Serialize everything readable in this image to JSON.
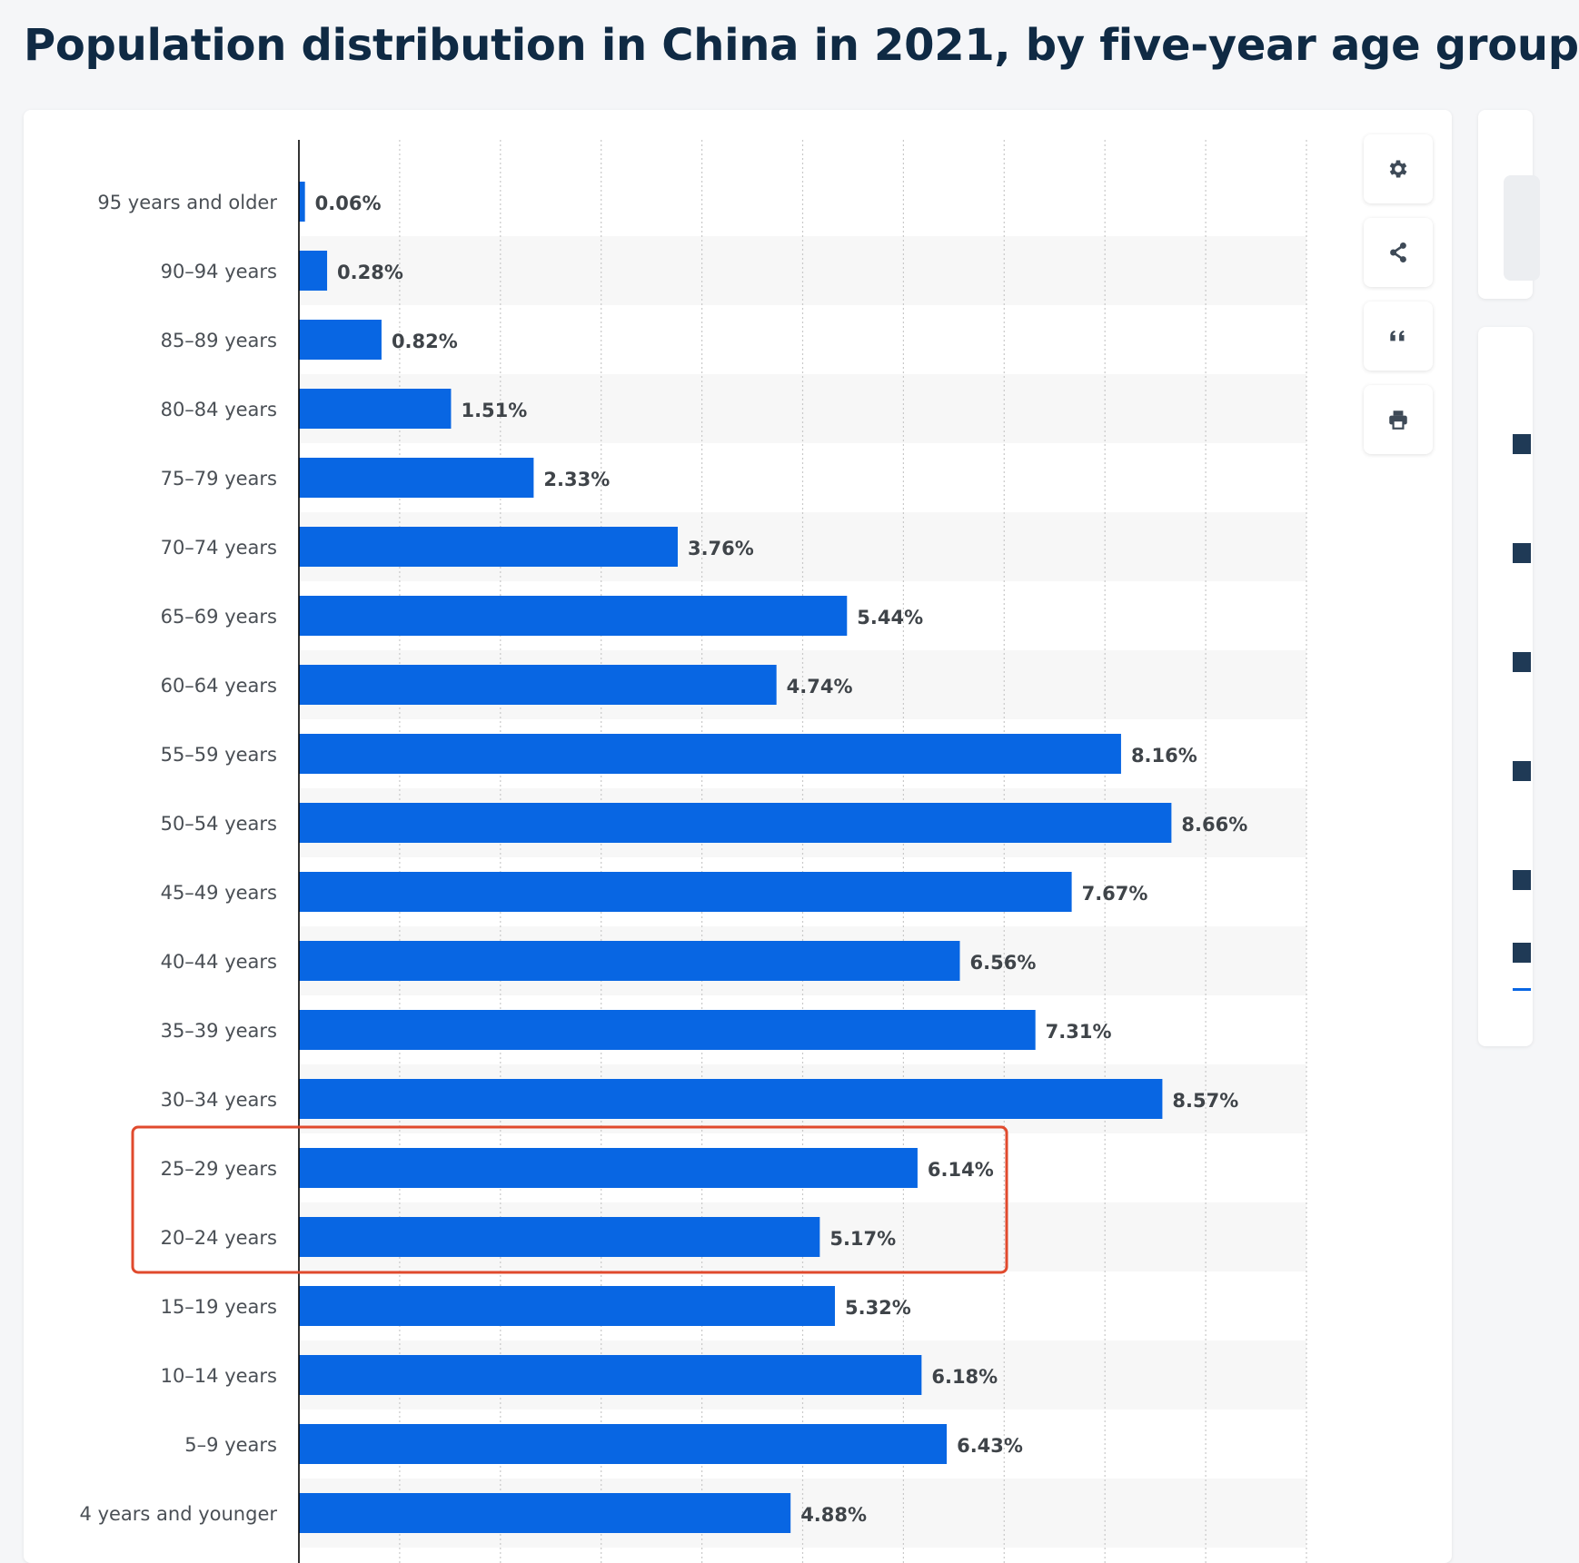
{
  "title": "Population distribution in China in 2021, by five-year age group",
  "colors": {
    "bar": "#0866e3",
    "highlight": "#e04a2d",
    "band": "#f7f7f7",
    "grid": "#c9c9c9",
    "axis": "#000000"
  },
  "toolbar": [
    {
      "name": "settings-button",
      "icon": "gear-icon"
    },
    {
      "name": "share-button",
      "icon": "share-icon"
    },
    {
      "name": "cite-button",
      "icon": "quote-icon"
    },
    {
      "name": "print-button",
      "icon": "printer-icon"
    }
  ],
  "chart_data": {
    "type": "bar",
    "orientation": "horizontal",
    "value_format": "percent",
    "decimals": 2,
    "xlim": [
      0,
      10
    ],
    "grid": true,
    "categories": [
      "95 years and older",
      "90–94 years",
      "85–89 years",
      "80–84 years",
      "75–79 years",
      "70–74 years",
      "65–69 years",
      "60–64 years",
      "55–59 years",
      "50–54 years",
      "45–49 years",
      "40–44 years",
      "35–39 years",
      "30–34 years",
      "25–29 years",
      "20–24 years",
      "15–19 years",
      "10–14 years",
      "5–9 years",
      "4 years and younger"
    ],
    "values": [
      0.06,
      0.28,
      0.82,
      1.51,
      2.33,
      3.76,
      5.44,
      4.74,
      8.16,
      8.66,
      7.67,
      6.56,
      7.31,
      8.57,
      6.14,
      5.17,
      5.32,
      6.18,
      6.43,
      4.88
    ],
    "highlighted_categories": [
      "25–29 years",
      "20–24 years"
    ]
  }
}
